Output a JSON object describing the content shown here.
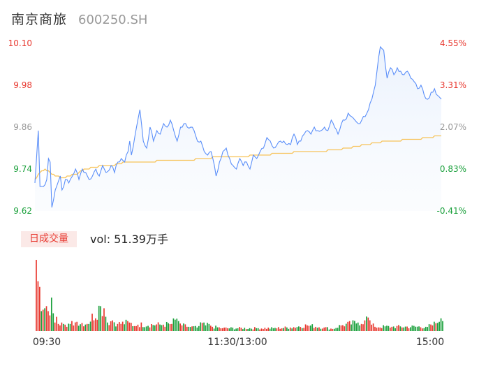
{
  "header": {
    "name": "南京商旅",
    "code": "600250.SH"
  },
  "volume_panel": {
    "tab_label": "日成交量",
    "vol_text": "vol: 51.39万手"
  },
  "colors": {
    "price_line": "#5b8ff9",
    "avg_line": "#f7c35a",
    "up": "#e8382f",
    "down": "#1aa03b",
    "neutral": "#999999"
  },
  "chart_data": [
    {
      "type": "line",
      "y_ticks_left": [
        "10.10",
        "9.98",
        "9.86",
        "9.74",
        "9.62"
      ],
      "y_ticks_right": [
        "4.55%",
        "3.31%",
        "2.07%",
        "0.83%",
        "-0.41%"
      ],
      "ylim": [
        9.62,
        10.1
      ],
      "prev_close": 9.66,
      "x_labels": [
        "09:30",
        "11:30/13:00",
        "15:00"
      ],
      "points": 241,
      "series": [
        {
          "role": "price",
          "anchors": [
            [
              0,
              9.7
            ],
            [
              2,
              9.85
            ],
            [
              3,
              9.69
            ],
            [
              5,
              9.69
            ],
            [
              7,
              9.71
            ],
            [
              8,
              9.77
            ],
            [
              9,
              9.76
            ],
            [
              10,
              9.63
            ],
            [
              12,
              9.68
            ],
            [
              15,
              9.72
            ],
            [
              16,
              9.68
            ],
            [
              18,
              9.71
            ],
            [
              20,
              9.7
            ],
            [
              24,
              9.74
            ],
            [
              26,
              9.71
            ],
            [
              28,
              9.74
            ],
            [
              30,
              9.73
            ],
            [
              32,
              9.71
            ],
            [
              34,
              9.72
            ],
            [
              36,
              9.74
            ],
            [
              38,
              9.72
            ],
            [
              40,
              9.75
            ],
            [
              42,
              9.73
            ],
            [
              45,
              9.75
            ],
            [
              47,
              9.73
            ],
            [
              49,
              9.76
            ],
            [
              51,
              9.77
            ],
            [
              53,
              9.76
            ],
            [
              55,
              9.79
            ],
            [
              56,
              9.82
            ],
            [
              57,
              9.78
            ],
            [
              60,
              9.86
            ],
            [
              62,
              9.91
            ],
            [
              64,
              9.82
            ],
            [
              66,
              9.8
            ],
            [
              68,
              9.86
            ],
            [
              70,
              9.82
            ],
            [
              72,
              9.85
            ],
            [
              74,
              9.84
            ],
            [
              76,
              9.87
            ],
            [
              78,
              9.86
            ],
            [
              80,
              9.88
            ],
            [
              82,
              9.85
            ],
            [
              84,
              9.82
            ],
            [
              86,
              9.86
            ],
            [
              88,
              9.87
            ],
            [
              90,
              9.86
            ],
            [
              92,
              9.86
            ],
            [
              94,
              9.85
            ],
            [
              96,
              9.82
            ],
            [
              98,
              9.82
            ],
            [
              100,
              9.79
            ],
            [
              102,
              9.78
            ],
            [
              104,
              9.79
            ],
            [
              106,
              9.75
            ],
            [
              107,
              9.72
            ],
            [
              109,
              9.76
            ],
            [
              111,
              9.79
            ],
            [
              113,
              9.8
            ],
            [
              115,
              9.77
            ],
            [
              117,
              9.75
            ],
            [
              119,
              9.74
            ],
            [
              121,
              9.77
            ],
            [
              123,
              9.75
            ],
            [
              125,
              9.76
            ],
            [
              127,
              9.74
            ],
            [
              129,
              9.78
            ],
            [
              131,
              9.77
            ],
            [
              133,
              9.79
            ],
            [
              135,
              9.8
            ],
            [
              137,
              9.83
            ],
            [
              139,
              9.82
            ],
            [
              141,
              9.8
            ],
            [
              143,
              9.81
            ],
            [
              145,
              9.82
            ],
            [
              147,
              9.82
            ],
            [
              149,
              9.81
            ],
            [
              151,
              9.81
            ],
            [
              153,
              9.84
            ],
            [
              155,
              9.81
            ],
            [
              157,
              9.82
            ],
            [
              159,
              9.84
            ],
            [
              161,
              9.85
            ],
            [
              163,
              9.84
            ],
            [
              165,
              9.86
            ],
            [
              167,
              9.85
            ],
            [
              169,
              9.85
            ],
            [
              171,
              9.86
            ],
            [
              173,
              9.85
            ],
            [
              175,
              9.88
            ],
            [
              177,
              9.86
            ],
            [
              179,
              9.84
            ],
            [
              181,
              9.87
            ],
            [
              183,
              9.88
            ],
            [
              185,
              9.9
            ],
            [
              187,
              9.89
            ],
            [
              189,
              9.88
            ],
            [
              191,
              9.87
            ],
            [
              193,
              9.88
            ],
            [
              195,
              9.89
            ],
            [
              197,
              9.91
            ],
            [
              199,
              9.94
            ],
            [
              201,
              9.98
            ],
            [
              202,
              10.02
            ],
            [
              203,
              10.06
            ],
            [
              204,
              10.09
            ],
            [
              206,
              10.08
            ],
            [
              208,
              10.0
            ],
            [
              210,
              10.03
            ],
            [
              212,
              10.01
            ],
            [
              214,
              10.03
            ],
            [
              216,
              10.02
            ],
            [
              218,
              10.01
            ],
            [
              220,
              10.02
            ],
            [
              222,
              10.0
            ],
            [
              224,
              9.99
            ],
            [
              226,
              9.97
            ],
            [
              228,
              9.98
            ],
            [
              230,
              9.95
            ],
            [
              232,
              9.94
            ],
            [
              234,
              9.96
            ],
            [
              236,
              9.97
            ],
            [
              238,
              9.95
            ],
            [
              240,
              9.94
            ]
          ]
        },
        {
          "role": "average",
          "anchors": [
            [
              0,
              9.71
            ],
            [
              3,
              9.73
            ],
            [
              6,
              9.74
            ],
            [
              10,
              9.725
            ],
            [
              16,
              9.715
            ],
            [
              24,
              9.725
            ],
            [
              30,
              9.74
            ],
            [
              40,
              9.75
            ],
            [
              46,
              9.75
            ],
            [
              50,
              9.757
            ],
            [
              58,
              9.76
            ],
            [
              66,
              9.76
            ],
            [
              74,
              9.764
            ],
            [
              90,
              9.765
            ],
            [
              100,
              9.77
            ],
            [
              110,
              9.775
            ],
            [
              130,
              9.778
            ],
            [
              140,
              9.783
            ],
            [
              160,
              9.79
            ],
            [
              175,
              9.793
            ],
            [
              185,
              9.8
            ],
            [
              195,
              9.81
            ],
            [
              202,
              9.815
            ],
            [
              206,
              9.82
            ],
            [
              215,
              9.822
            ],
            [
              225,
              9.825
            ],
            [
              235,
              9.832
            ],
            [
              240,
              9.835
            ]
          ]
        }
      ]
    },
    {
      "type": "bar",
      "label": "日成交量",
      "points": 241,
      "seed_peaks": [
        [
          0,
          100
        ],
        [
          1,
          70
        ],
        [
          2,
          62
        ],
        [
          3,
          28
        ],
        [
          4,
          30
        ],
        [
          5,
          32
        ],
        [
          6,
          35
        ],
        [
          7,
          28
        ],
        [
          8,
          22
        ],
        [
          9,
          47
        ],
        [
          10,
          25
        ],
        [
          11,
          12
        ],
        [
          12,
          20
        ],
        [
          13,
          10
        ],
        [
          14,
          8
        ],
        [
          15,
          12
        ],
        [
          16,
          10
        ],
        [
          17,
          9
        ],
        [
          18,
          6
        ],
        [
          20,
          10
        ],
        [
          24,
          13
        ],
        [
          30,
          10
        ],
        [
          38,
          35
        ],
        [
          40,
          32
        ],
        [
          42,
          12
        ],
        [
          45,
          15
        ],
        [
          48,
          10
        ],
        [
          55,
          12
        ],
        [
          58,
          7
        ],
        [
          60,
          9
        ],
        [
          75,
          9
        ],
        [
          80,
          10
        ],
        [
          82,
          16
        ],
        [
          84,
          14
        ],
        [
          86,
          8
        ],
        [
          90,
          6
        ],
        [
          95,
          5
        ],
        [
          99,
          12
        ],
        [
          100,
          8
        ],
        [
          102,
          10
        ],
        [
          104,
          6
        ],
        [
          110,
          4
        ],
        [
          130,
          4
        ],
        [
          140,
          4
        ],
        [
          150,
          5
        ],
        [
          160,
          8
        ],
        [
          170,
          5
        ],
        [
          175,
          3
        ],
        [
          180,
          8
        ],
        [
          190,
          12
        ],
        [
          194,
          15
        ],
        [
          196,
          19
        ],
        [
          198,
          9
        ],
        [
          200,
          6
        ],
        [
          210,
          6
        ],
        [
          230,
          6
        ],
        [
          234,
          8
        ],
        [
          236,
          11
        ],
        [
          238,
          13
        ],
        [
          240,
          14
        ]
      ],
      "colors_rule": "up-down-by-price"
    }
  ]
}
